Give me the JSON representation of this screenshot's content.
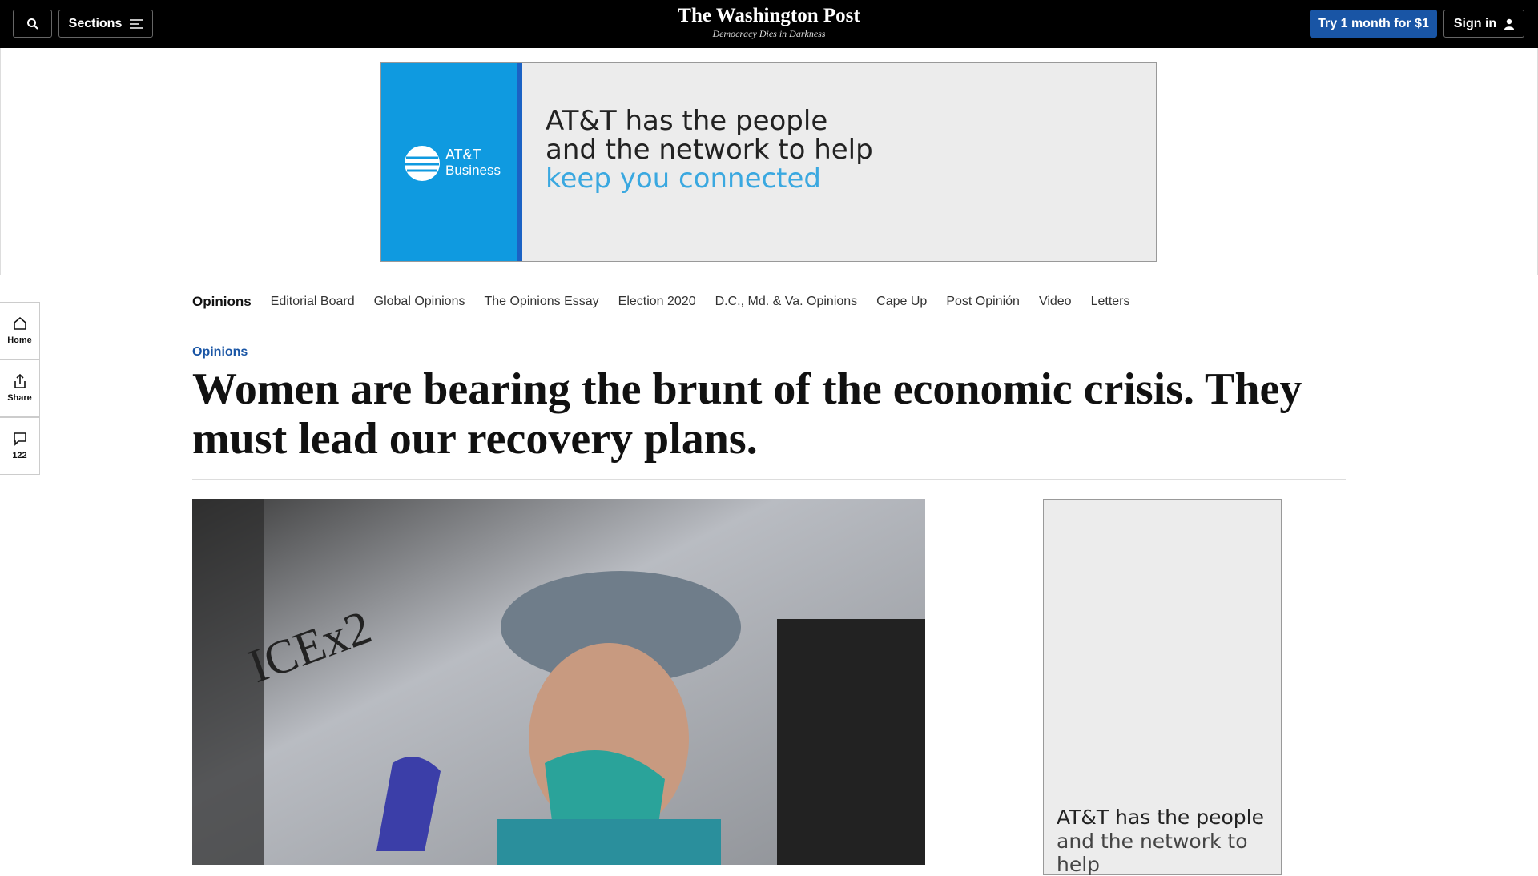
{
  "header": {
    "search": "",
    "sections": "Sections",
    "logo": "The Washington Post",
    "tagline": "Democracy Dies in Darkness",
    "subscribe": "Try 1 month for $1",
    "sign_in": "Sign in"
  },
  "ad": {
    "brand": "AT&T",
    "brand_sub": "Business",
    "lines": [
      "AT&T has the people",
      "and the network to help",
      "keep you connected"
    ]
  },
  "nav": [
    "Opinions",
    "Editorial Board",
    "Global Opinions",
    "The Opinions Essay",
    "Election 2020",
    "D.C., Md. & Va. Opinions",
    "Cape Up",
    "Post Opinión",
    "Video",
    "Letters"
  ],
  "rail": [
    "Home",
    "Share",
    "122"
  ],
  "article": {
    "kicker": "Opinions",
    "headline": "Women are bearing the brunt of the economic crisis. They must lead our recovery plans."
  },
  "side_ad": {
    "lines": [
      "AT&T has the people",
      "and the network to help"
    ]
  }
}
